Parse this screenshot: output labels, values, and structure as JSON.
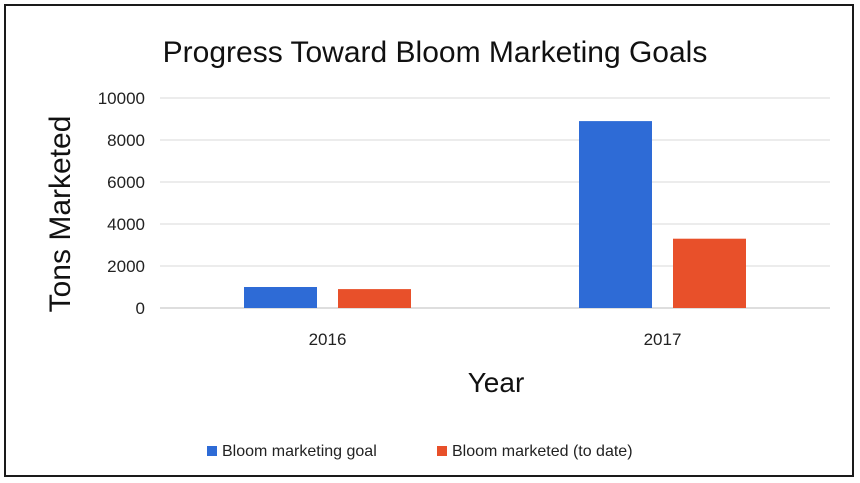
{
  "chart_data": {
    "type": "bar",
    "title": "Progress Toward Bloom Marketing Goals",
    "xlabel": "Year",
    "ylabel": "Tons Marketed",
    "categories": [
      "2016",
      "2017"
    ],
    "ylim": [
      0,
      10000
    ],
    "yticks": [
      0,
      2000,
      4000,
      6000,
      8000,
      10000
    ],
    "grid": true,
    "legend_position": "bottom",
    "series": [
      {
        "name": "Bloom marketing goal",
        "color": "#2e6bd6",
        "values": [
          1000,
          8900
        ]
      },
      {
        "name": "Bloom marketed (to date)",
        "color": "#e8502a",
        "values": [
          900,
          3300
        ]
      }
    ]
  }
}
